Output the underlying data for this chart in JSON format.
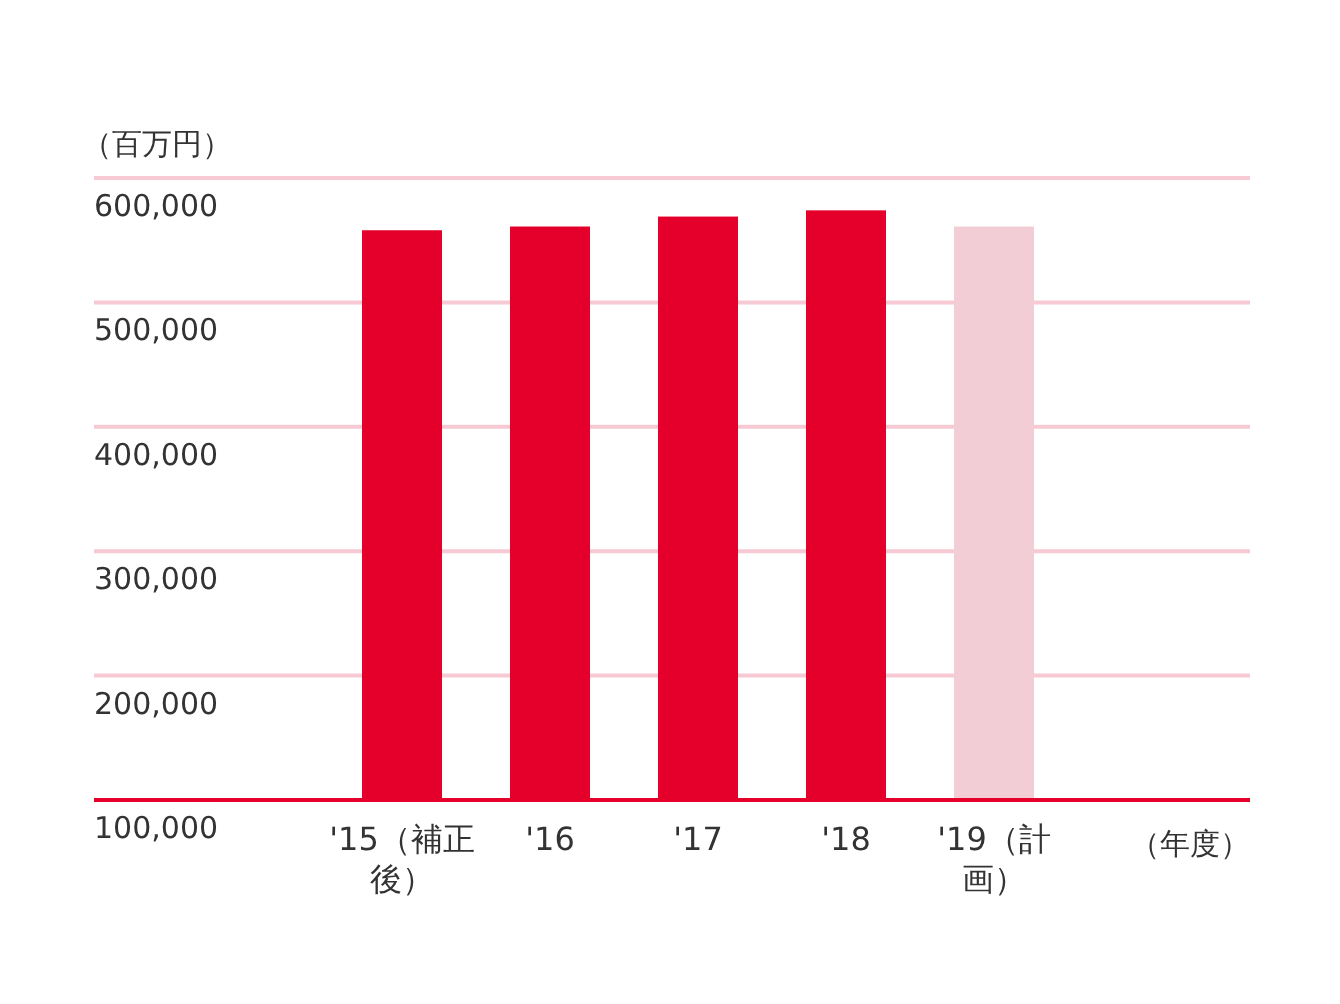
{
  "chart_data": {
    "type": "bar",
    "ylabel": "（百万円）",
    "xlabel": "（年度）",
    "categories": [
      "'15（補正後）",
      "'16",
      "'17",
      "'18",
      "'19（計画）"
    ],
    "values": [
      558000,
      561000,
      569000,
      574000,
      561000
    ],
    "colors": [
      "#e4002b",
      "#e4002b",
      "#e4002b",
      "#e4002b",
      "#f2cdd5"
    ],
    "ylim": [
      100000,
      600000
    ],
    "yticks": [
      {
        "value": 100000,
        "label": "100,000"
      },
      {
        "value": 200000,
        "label": "200,000"
      },
      {
        "value": 300000,
        "label": "300,000"
      },
      {
        "value": 400000,
        "label": "400,000"
      },
      {
        "value": 500000,
        "label": "500,000"
      },
      {
        "value": 600000,
        "label": "600,000"
      }
    ],
    "grid": "y"
  }
}
